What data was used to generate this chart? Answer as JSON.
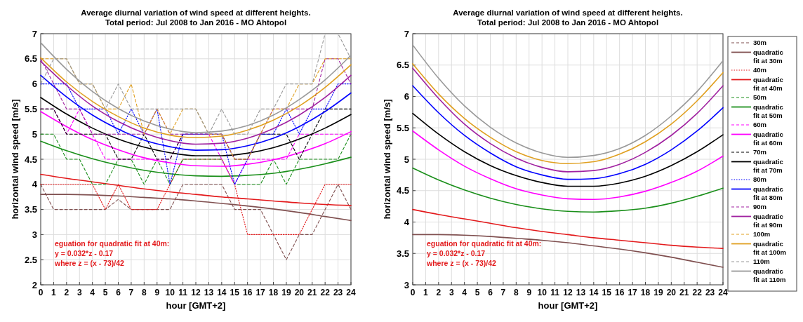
{
  "chart_data": [
    {
      "type": "line",
      "title": "Average diurnal variation of wind speed at different heights.",
      "subtitle": "Total period: Jul 2008 to Jan 2016 - MO Ahtopol",
      "xlabel": "hour [GMT+2]",
      "ylabel": "horizontal wind speed [m/s]",
      "x": [
        0,
        1,
        2,
        3,
        4,
        5,
        6,
        7,
        8,
        9,
        10,
        11,
        12,
        13,
        14,
        15,
        16,
        17,
        18,
        19,
        20,
        21,
        22,
        23,
        24
      ],
      "xlim": [
        0,
        24
      ],
      "xticks": [
        0,
        1,
        2,
        3,
        4,
        5,
        6,
        7,
        8,
        9,
        10,
        11,
        12,
        13,
        14,
        15,
        16,
        17,
        18,
        19,
        20,
        21,
        22,
        23,
        24
      ],
      "ylim": [
        2,
        7
      ],
      "yticks": [
        2,
        2.5,
        3,
        3.5,
        4,
        4.5,
        5,
        5.5,
        6,
        6.5,
        7
      ],
      "grid": true,
      "legend": "right",
      "annotations": [
        "eguation for quadratic fit at 40m:",
        "y = 0.032*z - 0.17",
        "where z = (x - 73)/42"
      ],
      "series": [
        {
          "name": "30m",
          "color": "#7f4f4f",
          "line_style": "dashed",
          "values": [
            4.0,
            3.5,
            3.5,
            3.5,
            3.5,
            3.5,
            3.7,
            3.5,
            3.5,
            3.5,
            3.5,
            4.0,
            4.0,
            4.0,
            4.0,
            3.5,
            3.5,
            3.5,
            3.0,
            2.5,
            3.0,
            3.0,
            3.5,
            4.0,
            3.5
          ]
        },
        {
          "name": "quadratic fit at 30m",
          "color": "#7f4f4f",
          "line_style": "solid",
          "marker": "none",
          "x": [
            0,
            2,
            4,
            6,
            8,
            10,
            12,
            14,
            16,
            18,
            20,
            22,
            24
          ],
          "values": [
            3.8,
            3.8,
            3.79,
            3.77,
            3.74,
            3.71,
            3.67,
            3.62,
            3.57,
            3.51,
            3.44,
            3.36,
            3.28
          ]
        },
        {
          "name": "40m",
          "color": "#e31a1c",
          "line_style": "dotted",
          "values": [
            4.0,
            4.0,
            4.0,
            4.0,
            4.0,
            3.5,
            4.0,
            3.5,
            3.5,
            3.5,
            4.0,
            4.5,
            4.5,
            4.5,
            4.5,
            4.0,
            3.0,
            3.0,
            3.0,
            3.0,
            3.0,
            3.5,
            4.0,
            4.0,
            4.0
          ]
        },
        {
          "name": "quadratic fit at 40m",
          "color": "#e31a1c",
          "line_style": "solid",
          "marker": "none",
          "x": [
            0,
            2,
            4,
            6,
            8,
            10,
            12,
            14,
            16,
            18,
            20,
            22,
            24
          ],
          "values": [
            4.2,
            4.12,
            4.05,
            3.98,
            3.91,
            3.85,
            3.8,
            3.75,
            3.71,
            3.67,
            3.63,
            3.6,
            3.58
          ]
        },
        {
          "name": "50m",
          "color": "#1a8f1a",
          "line_style": "dashed",
          "values": [
            5.0,
            5.0,
            4.5,
            4.5,
            4.0,
            4.0,
            4.5,
            4.5,
            4.0,
            4.5,
            4.0,
            4.5,
            4.5,
            4.5,
            4.5,
            4.0,
            4.0,
            4.0,
            4.5,
            4.0,
            4.5,
            4.5,
            4.5,
            4.5,
            5.0
          ]
        },
        {
          "name": "quadratic fit at 50m",
          "color": "#1a8f1a",
          "line_style": "solid",
          "marker": "none",
          "x": [
            0,
            2,
            4,
            6,
            8,
            10,
            12,
            14,
            16,
            18,
            20,
            22,
            24
          ],
          "values": [
            4.86,
            4.67,
            4.51,
            4.38,
            4.28,
            4.21,
            4.17,
            4.16,
            4.18,
            4.22,
            4.3,
            4.41,
            4.54
          ]
        },
        {
          "name": "60m",
          "color": "#ff00ff",
          "line_style": "dashed",
          "values": [
            5.5,
            5.5,
            5.0,
            5.5,
            5.0,
            4.5,
            4.5,
            4.5,
            4.5,
            4.5,
            4.5,
            5.0,
            5.0,
            5.0,
            4.5,
            4.0,
            4.5,
            4.5,
            4.5,
            4.5,
            5.0,
            5.0,
            5.0,
            5.0,
            5.0
          ]
        },
        {
          "name": "quadratic fit at 60m",
          "color": "#ff00ff",
          "line_style": "solid",
          "marker": "none",
          "x": [
            0,
            2,
            4,
            6,
            8,
            10,
            12,
            14,
            16,
            18,
            20,
            22,
            24
          ],
          "values": [
            5.45,
            5.15,
            4.89,
            4.69,
            4.53,
            4.43,
            4.37,
            4.36,
            4.4,
            4.49,
            4.63,
            4.81,
            5.05
          ]
        },
        {
          "name": "70m",
          "color": "#000000",
          "line_style": "dashed",
          "values": [
            5.5,
            5.5,
            5.0,
            5.0,
            5.0,
            5.0,
            4.5,
            4.5,
            5.0,
            4.5,
            4.5,
            5.0,
            5.0,
            5.0,
            5.0,
            4.5,
            4.5,
            5.0,
            5.0,
            5.0,
            4.5,
            5.0,
            5.5,
            5.5,
            5.5
          ]
        },
        {
          "name": "quadratic fit at 70m",
          "color": "#000000",
          "line_style": "solid",
          "marker": "none",
          "x": [
            0,
            2,
            4,
            6,
            8,
            10,
            12,
            14,
            16,
            18,
            20,
            22,
            24
          ],
          "values": [
            5.73,
            5.4,
            5.12,
            4.9,
            4.74,
            4.63,
            4.57,
            4.57,
            4.62,
            4.73,
            4.9,
            5.12,
            5.39
          ]
        },
        {
          "name": "80m",
          "color": "#0000ff",
          "line_style": "dotted",
          "values": [
            6.0,
            6.0,
            6.0,
            5.5,
            5.5,
            5.5,
            5.0,
            5.5,
            5.0,
            5.5,
            4.0,
            5.0,
            5.0,
            5.0,
            5.0,
            4.0,
            4.5,
            5.0,
            5.0,
            5.5,
            5.0,
            5.5,
            5.5,
            6.0,
            6.0
          ]
        },
        {
          "name": "quadratic fit at 80m",
          "color": "#0000ff",
          "line_style": "solid",
          "marker": "none",
          "x": [
            0,
            2,
            4,
            6,
            8,
            10,
            12,
            14,
            16,
            18,
            20,
            22,
            24
          ],
          "values": [
            6.17,
            5.74,
            5.38,
            5.1,
            4.88,
            4.75,
            4.68,
            4.69,
            4.77,
            4.92,
            5.15,
            5.45,
            5.82
          ]
        },
        {
          "name": "90m",
          "color": "#a020a0",
          "line_style": "dashed",
          "values": [
            6.5,
            6.0,
            5.5,
            5.5,
            5.0,
            5.0,
            5.0,
            5.0,
            5.0,
            5.5,
            5.0,
            5.0,
            5.0,
            5.0,
            5.0,
            4.5,
            4.5,
            5.0,
            5.5,
            5.5,
            5.5,
            5.5,
            6.5,
            6.5,
            6.0
          ]
        },
        {
          "name": "quadratic fit at 90m",
          "color": "#a020a0",
          "line_style": "solid",
          "marker": "none",
          "x": [
            0,
            2,
            4,
            6,
            8,
            10,
            12,
            14,
            16,
            18,
            20,
            22,
            24
          ],
          "values": [
            6.45,
            5.97,
            5.56,
            5.25,
            5.02,
            4.87,
            4.8,
            4.82,
            4.92,
            5.11,
            5.38,
            5.73,
            6.17
          ]
        },
        {
          "name": "100m",
          "color": "#e0a020",
          "line_style": "dashed",
          "values": [
            6.5,
            6.5,
            6.5,
            6.0,
            6.0,
            5.5,
            5.5,
            6.0,
            5.0,
            5.5,
            5.0,
            5.5,
            5.5,
            5.0,
            5.0,
            4.5,
            4.5,
            5.0,
            5.5,
            5.5,
            6.0,
            6.0,
            6.5,
            6.5,
            6.5
          ]
        },
        {
          "name": "quadratic fit at 100m",
          "color": "#e0a020",
          "line_style": "solid",
          "marker": "none",
          "x": [
            0,
            2,
            4,
            6,
            8,
            10,
            12,
            14,
            16,
            18,
            20,
            22,
            24
          ],
          "values": [
            6.52,
            6.04,
            5.65,
            5.35,
            5.12,
            4.98,
            4.93,
            4.96,
            5.08,
            5.28,
            5.56,
            5.93,
            6.38
          ]
        },
        {
          "name": "110m",
          "color": "#999999",
          "line_style": "dashed",
          "values": [
            6.0,
            6.5,
            6.5,
            6.0,
            6.0,
            5.5,
            6.0,
            5.5,
            5.5,
            5.5,
            5.5,
            5.5,
            5.5,
            5.0,
            5.5,
            5.0,
            5.0,
            5.5,
            5.5,
            6.0,
            6.0,
            6.0,
            7.0,
            7.0,
            6.5
          ]
        },
        {
          "name": "quadratic fit at 110m",
          "color": "#999999",
          "line_style": "solid",
          "marker": "none",
          "x": [
            0,
            2,
            4,
            6,
            8,
            10,
            12,
            14,
            16,
            18,
            20,
            22,
            24
          ],
          "values": [
            6.82,
            6.29,
            5.85,
            5.51,
            5.26,
            5.1,
            5.03,
            5.06,
            5.17,
            5.38,
            5.69,
            6.08,
            6.57
          ]
        }
      ]
    },
    {
      "type": "line",
      "title": "Average diurnal variation of wind speed at different heights.",
      "subtitle": "Total period: Jul 2008 to Jan 2016 - MO Ahtopol",
      "xlabel": "hour [GMT+2]",
      "ylabel": "horizontal wind speed [m/s]",
      "x": [
        0,
        2,
        4,
        6,
        8,
        10,
        12,
        14,
        16,
        18,
        20,
        22,
        24
      ],
      "xlim": [
        0,
        24
      ],
      "xticks": [
        0,
        1,
        2,
        3,
        4,
        5,
        6,
        7,
        8,
        9,
        10,
        11,
        12,
        13,
        14,
        15,
        16,
        17,
        18,
        19,
        20,
        21,
        22,
        23,
        24
      ],
      "ylim": [
        3,
        7
      ],
      "yticks": [
        3,
        3.5,
        4,
        4.5,
        5,
        5.5,
        6,
        6.5,
        7
      ],
      "grid": true,
      "line_style": "solid",
      "marker": "none",
      "annotations": [
        "eguation for quadratic fit at 40m:",
        "y = 0.032*z - 0.17",
        "where z = (x - 73)/42"
      ],
      "series": [
        {
          "color": "#7f4f4f",
          "values": [
            3.8,
            3.8,
            3.79,
            3.77,
            3.74,
            3.71,
            3.67,
            3.62,
            3.57,
            3.51,
            3.44,
            3.36,
            3.28
          ]
        },
        {
          "color": "#e31a1c",
          "values": [
            4.2,
            4.12,
            4.05,
            3.98,
            3.91,
            3.85,
            3.8,
            3.75,
            3.71,
            3.67,
            3.63,
            3.6,
            3.58
          ]
        },
        {
          "color": "#1a8f1a",
          "values": [
            4.86,
            4.67,
            4.51,
            4.38,
            4.28,
            4.21,
            4.17,
            4.16,
            4.18,
            4.22,
            4.3,
            4.41,
            4.54
          ]
        },
        {
          "color": "#ff00ff",
          "values": [
            5.45,
            5.15,
            4.89,
            4.69,
            4.53,
            4.43,
            4.37,
            4.36,
            4.4,
            4.49,
            4.63,
            4.81,
            5.05
          ]
        },
        {
          "color": "#000000",
          "values": [
            5.73,
            5.4,
            5.12,
            4.9,
            4.74,
            4.63,
            4.57,
            4.57,
            4.62,
            4.73,
            4.9,
            5.12,
            5.39
          ]
        },
        {
          "color": "#0000ff",
          "values": [
            6.17,
            5.74,
            5.38,
            5.1,
            4.88,
            4.75,
            4.68,
            4.69,
            4.77,
            4.92,
            5.15,
            5.45,
            5.82
          ]
        },
        {
          "color": "#a020a0",
          "values": [
            6.45,
            5.97,
            5.56,
            5.25,
            5.02,
            4.87,
            4.8,
            4.82,
            4.92,
            5.11,
            5.38,
            5.73,
            6.17
          ]
        },
        {
          "color": "#e0a020",
          "values": [
            6.52,
            6.04,
            5.65,
            5.35,
            5.12,
            4.98,
            4.93,
            4.96,
            5.08,
            5.28,
            5.56,
            5.93,
            6.38
          ]
        },
        {
          "color": "#999999",
          "values": [
            6.82,
            6.29,
            5.85,
            5.51,
            5.26,
            5.1,
            5.03,
            5.06,
            5.17,
            5.38,
            5.69,
            6.08,
            6.57
          ]
        }
      ]
    }
  ]
}
